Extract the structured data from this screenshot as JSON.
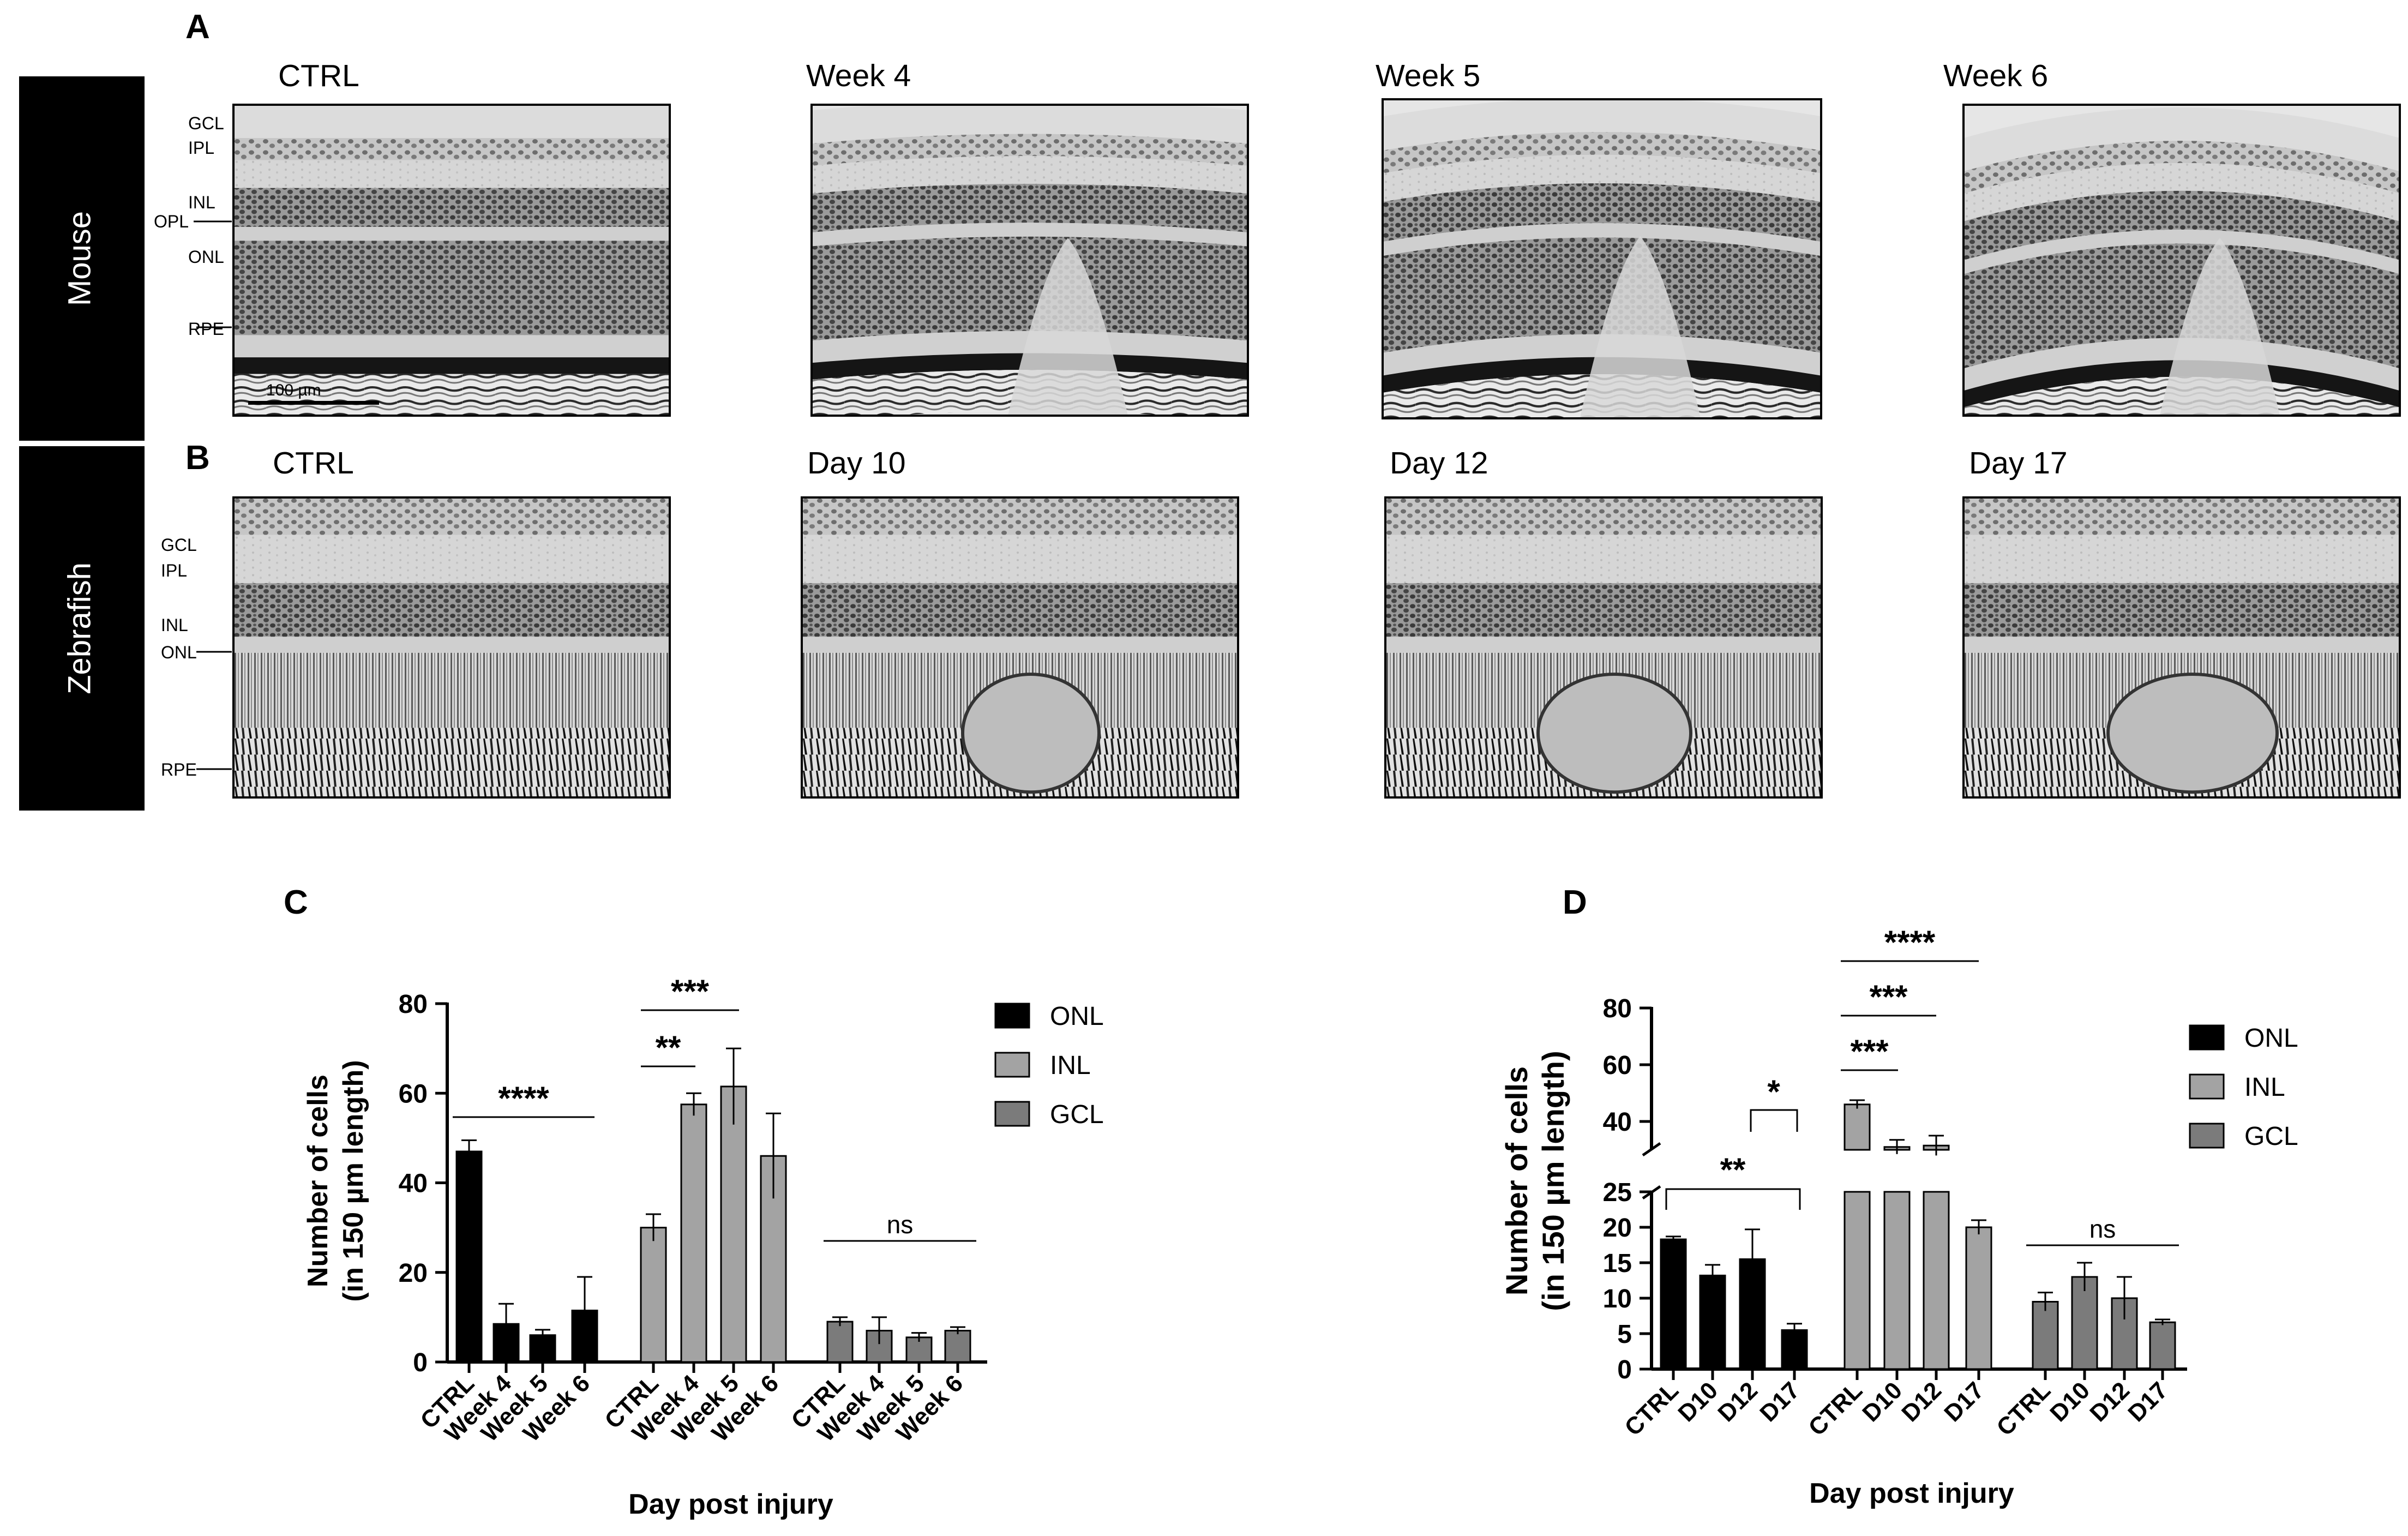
{
  "panel_a": {
    "letter": "A",
    "side_label": "Mouse",
    "layer_labels": [
      "GCL",
      "IPL",
      "INL",
      "OPL",
      "ONL",
      "RPE"
    ],
    "scale_bar": "100 µm",
    "images": [
      "CTRL",
      "Week 4",
      "Week 5",
      "Week 6"
    ]
  },
  "panel_b": {
    "letter": "B",
    "side_label": "Zebrafish",
    "layer_labels": [
      "GCL",
      "IPL",
      "INL",
      "ONL",
      "RPE"
    ],
    "images": [
      "CTRL",
      "Day 10",
      "Day 12",
      "Day 17"
    ]
  },
  "chart_data": [
    {
      "panel": "C",
      "type": "bar",
      "title": "",
      "xlabel": "Day post injury",
      "ylabel_lines": [
        "Number of cells",
        "(in 150 µm length)"
      ],
      "ylim": [
        0,
        80
      ],
      "yticks": [
        0,
        20,
        40,
        60,
        80
      ],
      "legend_position": "right",
      "colors": {
        "ONL": "#000000",
        "INL": "#a3a3a3",
        "GCL": "#7b7b7b"
      },
      "groups": [
        {
          "name": "ONL",
          "categories": [
            "CTRL",
            "Week 4",
            "Week 5",
            "Week 6"
          ],
          "values": [
            47,
            8.5,
            6,
            11.5
          ],
          "errors": [
            2.5,
            4.5,
            1.2,
            7.5
          ]
        },
        {
          "name": "INL",
          "categories": [
            "CTRL",
            "Week 4",
            "Week 5",
            "Week 6"
          ],
          "values": [
            30,
            57.5,
            61.5,
            46
          ],
          "errors": [
            3,
            2.5,
            8.5,
            9.5
          ]
        },
        {
          "name": "GCL",
          "categories": [
            "CTRL",
            "Week 4",
            "Week 5",
            "Week 6"
          ],
          "values": [
            9,
            7,
            5.5,
            7
          ],
          "errors": [
            1,
            3,
            1,
            0.8
          ]
        }
      ],
      "significance": [
        "****",
        "**",
        "***",
        "ns"
      ]
    },
    {
      "panel": "D",
      "type": "bar",
      "title": "",
      "xlabel": "Day post injury",
      "ylabel_lines": [
        "Number of cells",
        "(in 150 µm length)"
      ],
      "y_axis_break": true,
      "ylim_lower": [
        0,
        25
      ],
      "ylim_upper": [
        30,
        80
      ],
      "yticks_lower": [
        0,
        5,
        10,
        15,
        20,
        25
      ],
      "yticks_upper": [
        40,
        60,
        80
      ],
      "legend_position": "right",
      "colors": {
        "ONL": "#000000",
        "INL": "#a3a3a3",
        "GCL": "#7b7b7b"
      },
      "groups": [
        {
          "name": "ONL",
          "categories": [
            "CTRL",
            "D10",
            "D12",
            "D17"
          ],
          "values": [
            18.3,
            13.2,
            15.5,
            5.5
          ],
          "errors": [
            0.4,
            1.5,
            4.2,
            0.9
          ]
        },
        {
          "name": "INL",
          "categories": [
            "CTRL",
            "D10",
            "D12",
            "D17"
          ],
          "values": [
            46,
            31,
            31.5,
            20
          ],
          "errors": [
            1.5,
            2.5,
            3.5,
            1
          ]
        },
        {
          "name": "GCL",
          "categories": [
            "CTRL",
            "D10",
            "D12",
            "D17"
          ],
          "values": [
            9.5,
            13,
            10,
            6.6
          ],
          "errors": [
            1.3,
            2,
            3,
            0.4
          ]
        }
      ],
      "significance": [
        "**",
        "*",
        "***",
        "***",
        "****",
        "ns"
      ]
    }
  ]
}
